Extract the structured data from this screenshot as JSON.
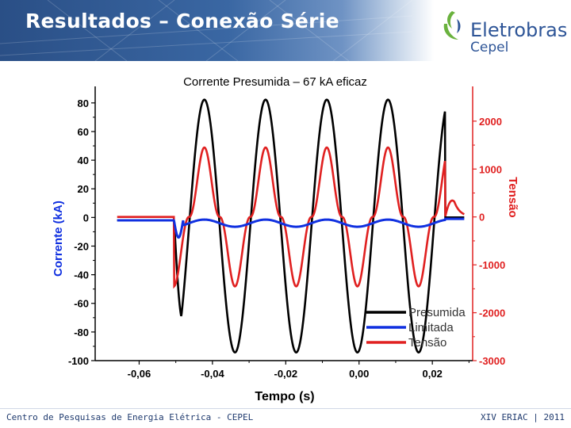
{
  "header": {
    "title": "Resultados – Conexão Série",
    "brand": "Eletrobras",
    "brand_sub": "Cepel",
    "brand_color": "#2e5597",
    "logo_green": "#6ab23e",
    "bg_color": "#2a4f86"
  },
  "footer": {
    "left": "Centro de Pesquisas de Energia Elétrica - CEPEL",
    "right": "XIV ERIAC | 2011"
  },
  "chart_data": {
    "type": "line",
    "title": "Corrente Presumida – 67 kA eficaz",
    "xlabel": "Tempo (s)",
    "ylabel_left": "Corrente (kA)",
    "ylabel_right": "Tensão",
    "x_ticks": [
      "-0,06",
      "-0,04",
      "-0,02",
      "0,00",
      "0,02"
    ],
    "y_left_ticks": [
      "80",
      "60",
      "40",
      "20",
      "0",
      "-20",
      "-40",
      "-60",
      "-80",
      "-100"
    ],
    "y_right_ticks": [
      "2000",
      "1000",
      "0",
      "-1000",
      "-2000",
      "-3000"
    ],
    "xlim": [
      -0.072,
      0.031
    ],
    "ylim_left": [
      -100,
      86
    ],
    "ylim_right": [
      -3000,
      2560
    ],
    "grid": false,
    "legend_position": "bottom-right",
    "left_axis_color": "#000000",
    "right_axis_color": "#e02020",
    "series": [
      {
        "name": "Presumida",
        "color": "#000000",
        "axis": "left",
        "fault_start": -0.0505,
        "fault_end": 0.0235,
        "amplitude": 91,
        "offset": -6,
        "period": 0.0167,
        "phase_peak": -0.0422,
        "peaks": [
          81,
          82,
          83,
          84
        ],
        "troughs": [
          -94,
          -94,
          -94,
          -94
        ]
      },
      {
        "name": "Limitada",
        "color": "#1030e0",
        "axis": "left",
        "steady": -4,
        "amplitude": 2.5,
        "initial_dip": -12
      },
      {
        "name": "Tensão",
        "color": "#e02020",
        "axis": "right",
        "steady": 0,
        "peaks": [
          1400,
          1450,
          1450,
          1450
        ],
        "troughs": [
          -1450,
          -1450,
          -1450,
          -1450
        ],
        "end_spike": 530
      }
    ]
  }
}
